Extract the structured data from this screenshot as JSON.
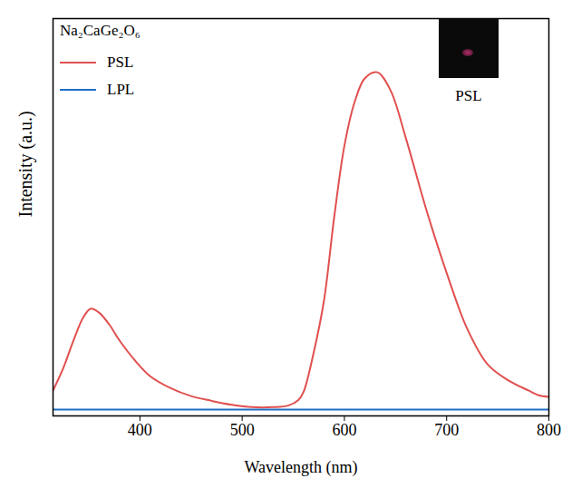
{
  "chart_data": {
    "type": "line",
    "title": "Na₂CaGe₂O₆",
    "x_label": "Wavelength (nm)",
    "y_label": "Intensity (a.u.)",
    "x": [
      315,
      325,
      335,
      345,
      352,
      360,
      370,
      380,
      395,
      410,
      430,
      450,
      470,
      490,
      510,
      530,
      545,
      555,
      560,
      570,
      580,
      590,
      600,
      610,
      620,
      632,
      645,
      660,
      680,
      700,
      720,
      740,
      760,
      780,
      790,
      800
    ],
    "series": [
      {
        "name": "PSL",
        "color": "#e0504f",
        "values": [
          6.4,
          12,
          19,
          25,
          27,
          26,
          23,
          19,
          14,
          10,
          7,
          5,
          3.8,
          2.8,
          2.2,
          2.2,
          2.6,
          4,
          6,
          16,
          29,
          50,
          68,
          79,
          85,
          86.5,
          82,
          70,
          52,
          36,
          22,
          13,
          9,
          6.4,
          5.2,
          4.8
        ]
      },
      {
        "name": "LPL",
        "color": "#1f6fc5",
        "values": [
          1.6,
          1.6,
          1.6,
          1.6,
          1.6,
          1.6,
          1.6,
          1.6,
          1.6,
          1.6,
          1.6,
          1.6,
          1.6,
          1.6,
          1.6,
          1.6,
          1.6,
          1.6,
          1.6,
          1.6,
          1.6,
          1.6,
          1.6,
          1.6,
          1.6,
          1.6,
          1.6,
          1.6,
          1.6,
          1.6,
          1.6,
          1.6,
          1.6,
          1.6,
          1.6,
          1.6
        ]
      }
    ],
    "xlim": [
      315,
      800
    ],
    "ylim": [
      0,
      100
    ],
    "xticks": [
      400,
      500,
      600,
      700,
      800
    ],
    "tick_labels": "x",
    "legend": "top-left",
    "annotations": [
      "PSL"
    ]
  }
}
